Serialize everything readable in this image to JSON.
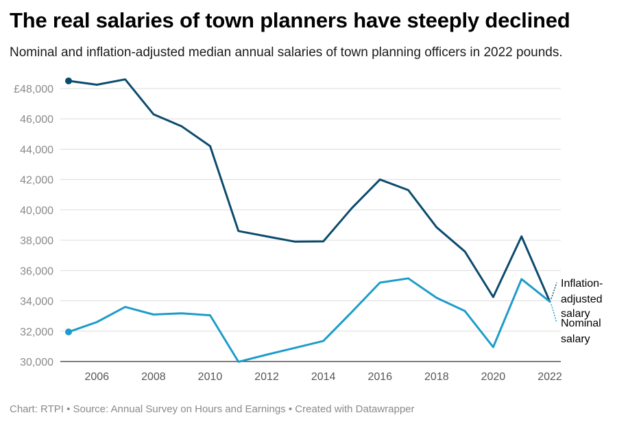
{
  "title": "The real salaries of town planners have steeply declined",
  "subtitle": "Nominal and inflation-adjusted median annual salaries of town planning officers in 2022 pounds.",
  "footer": "Chart: RTPI • Source: Annual Survey on Hours and Earnings • Created with Datawrapper",
  "chart_data": {
    "type": "line",
    "x": [
      2005,
      2006,
      2007,
      2008,
      2009,
      2010,
      2011,
      2012,
      2013,
      2014,
      2015,
      2016,
      2017,
      2018,
      2019,
      2020,
      2021,
      2022
    ],
    "xlim": [
      2005,
      2022
    ],
    "ylim": [
      30000,
      48000
    ],
    "grid": true,
    "x_ticks": [
      "2006",
      "2008",
      "2010",
      "2012",
      "2014",
      "2016",
      "2018",
      "2020",
      "2022"
    ],
    "y_ticks": [
      "30,000",
      "32,000",
      "34,000",
      "36,000",
      "38,000",
      "40,000",
      "42,000",
      "44,000",
      "46,000",
      "£48,000"
    ],
    "series": [
      {
        "name": "Inflation-adjusted salary",
        "label_lines": [
          "Inflation-",
          "adjusted",
          "salary"
        ],
        "color": "#0b4a6e",
        "values": [
          48500,
          48250,
          48600,
          46300,
          45500,
          44200,
          38600,
          38250,
          37900,
          37920,
          40100,
          42000,
          41300,
          38850,
          37250,
          34250,
          38250,
          33950
        ]
      },
      {
        "name": "Nominal salary",
        "label_lines": [
          "Nominal",
          "salary"
        ],
        "color": "#1d9cc9",
        "values": [
          31950,
          32600,
          33600,
          33100,
          33180,
          33050,
          29980,
          30450,
          30900,
          31350,
          33250,
          35200,
          35480,
          34200,
          33330,
          30950,
          35430,
          33950
        ]
      }
    ]
  }
}
